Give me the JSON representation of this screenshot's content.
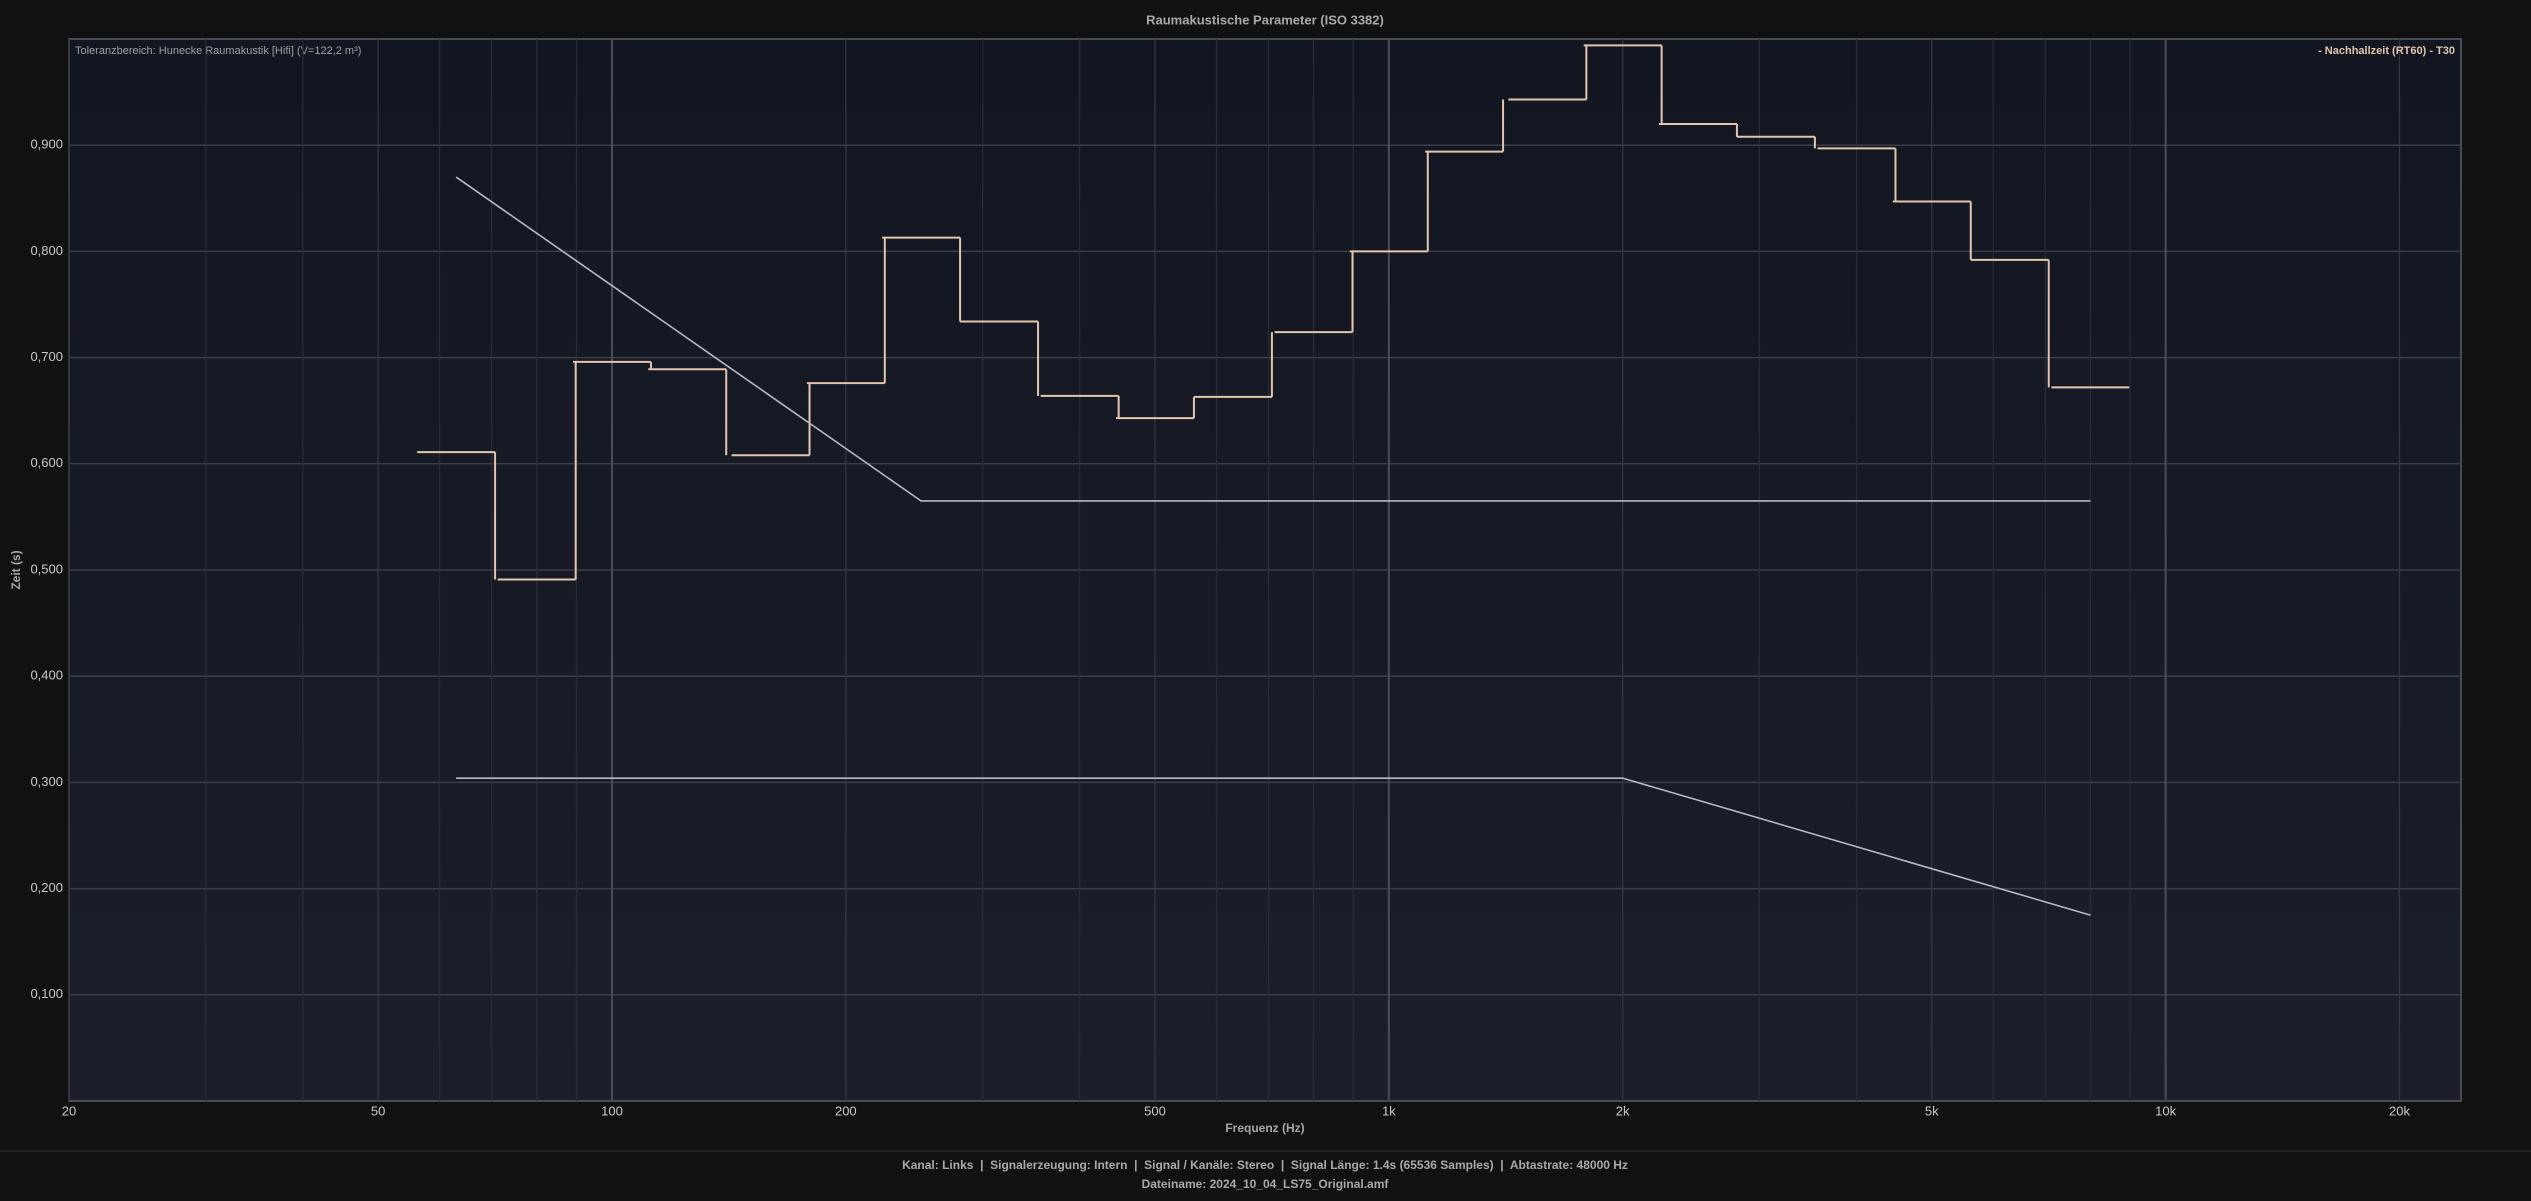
{
  "chart_data": {
    "type": "line",
    "title": "Raumakustische Parameter (ISO 3382)",
    "annotation": "Toleranzbereich: Hunecke Raumakustik [Hifi] (V=122,2 m³)",
    "x_label": "Frequenz (Hz)",
    "y_label": "Zeit (s)",
    "x_scale": "log",
    "grid": true,
    "legend": "top-right",
    "xlim": [
      20,
      24000
    ],
    "ylim": [
      0,
      1.0
    ],
    "xticks": [
      20,
      50,
      100,
      200,
      500,
      {
        "value": 1000,
        "label": "1k"
      },
      {
        "value": 2000,
        "label": "2k"
      },
      {
        "value": 5000,
        "label": "5k"
      },
      {
        "value": 10000,
        "label": "10k"
      },
      {
        "value": 20000,
        "label": "20k"
      }
    ],
    "xminor_ticks": [
      30,
      40,
      60,
      70,
      80,
      90,
      300,
      400,
      600,
      700,
      800,
      900,
      3000,
      4000,
      6000,
      7000,
      8000,
      9000
    ],
    "yticks": [
      {
        "value": 0.1,
        "label": "0,100"
      },
      {
        "value": 0.2,
        "label": "0,200"
      },
      {
        "value": 0.3,
        "label": "0,300"
      },
      {
        "value": 0.4,
        "label": "0,400"
      },
      {
        "value": 0.5,
        "label": "0,500"
      },
      {
        "value": 0.6,
        "label": "0,600"
      },
      {
        "value": 0.7,
        "label": "0,700"
      },
      {
        "value": 0.8,
        "label": "0,800"
      },
      {
        "value": 0.9,
        "label": "0,900"
      }
    ],
    "series": [
      {
        "name": "- Nachhallzeit (RT60) - T30",
        "color": "#e3c6ad",
        "step": "third-octave",
        "x": [
          63,
          80,
          100,
          125,
          160,
          200,
          250,
          315,
          400,
          500,
          630,
          800,
          1000,
          1250,
          1600,
          2000,
          2500,
          3150,
          4000,
          5000,
          6300,
          8000
        ],
        "values": [
          0.611,
          0.491,
          0.696,
          0.689,
          0.608,
          0.676,
          0.813,
          0.734,
          0.664,
          0.643,
          0.663,
          0.724,
          0.8,
          0.894,
          0.943,
          0.994,
          0.92,
          0.908,
          0.897,
          0.847,
          0.792,
          0.672
        ]
      },
      {
        "color": "#b9b9c2",
        "x": [
          63,
          250,
          8000
        ],
        "values": [
          0.87,
          0.565,
          0.565
        ]
      },
      {
        "color": "#b9b9c2",
        "x": [
          63,
          2000,
          8000
        ],
        "values": [
          0.304,
          0.304,
          0.175
        ]
      }
    ]
  },
  "footer": {
    "info": "Kanal: Links  |  Signalerzeugung: Intern  |  Signal / Kanäle: Stereo  |  Signal Länge: 1.4s (65536 Samples)  |  Abtastrate: 48000 Hz",
    "filename": "Dateiname: 2024_10_04_LS75_Original.amf"
  }
}
